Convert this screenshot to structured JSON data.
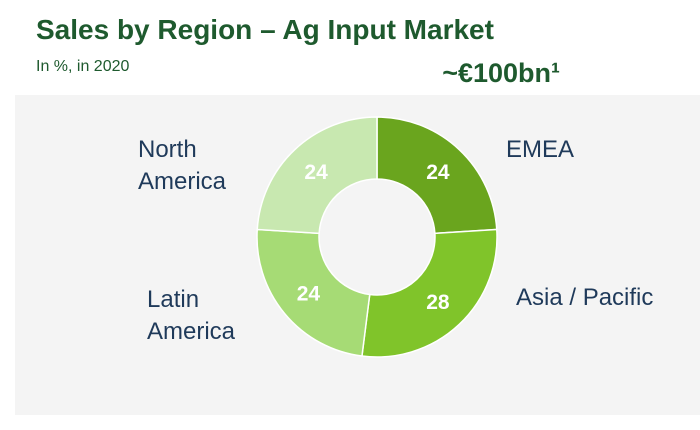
{
  "chart_data": {
    "type": "donut",
    "title": "Sales by Region – Ag Input Market",
    "subtitle": "In %, in 2020",
    "annotation": "~€100bn¹",
    "categories": [
      "EMEA",
      "Asia / Pacific",
      "Latin America",
      "North America"
    ],
    "values": [
      24,
      28,
      24,
      24
    ],
    "colors": [
      "#6aa51e",
      "#80c42a",
      "#a6db75",
      "#c8e8b0"
    ]
  }
}
